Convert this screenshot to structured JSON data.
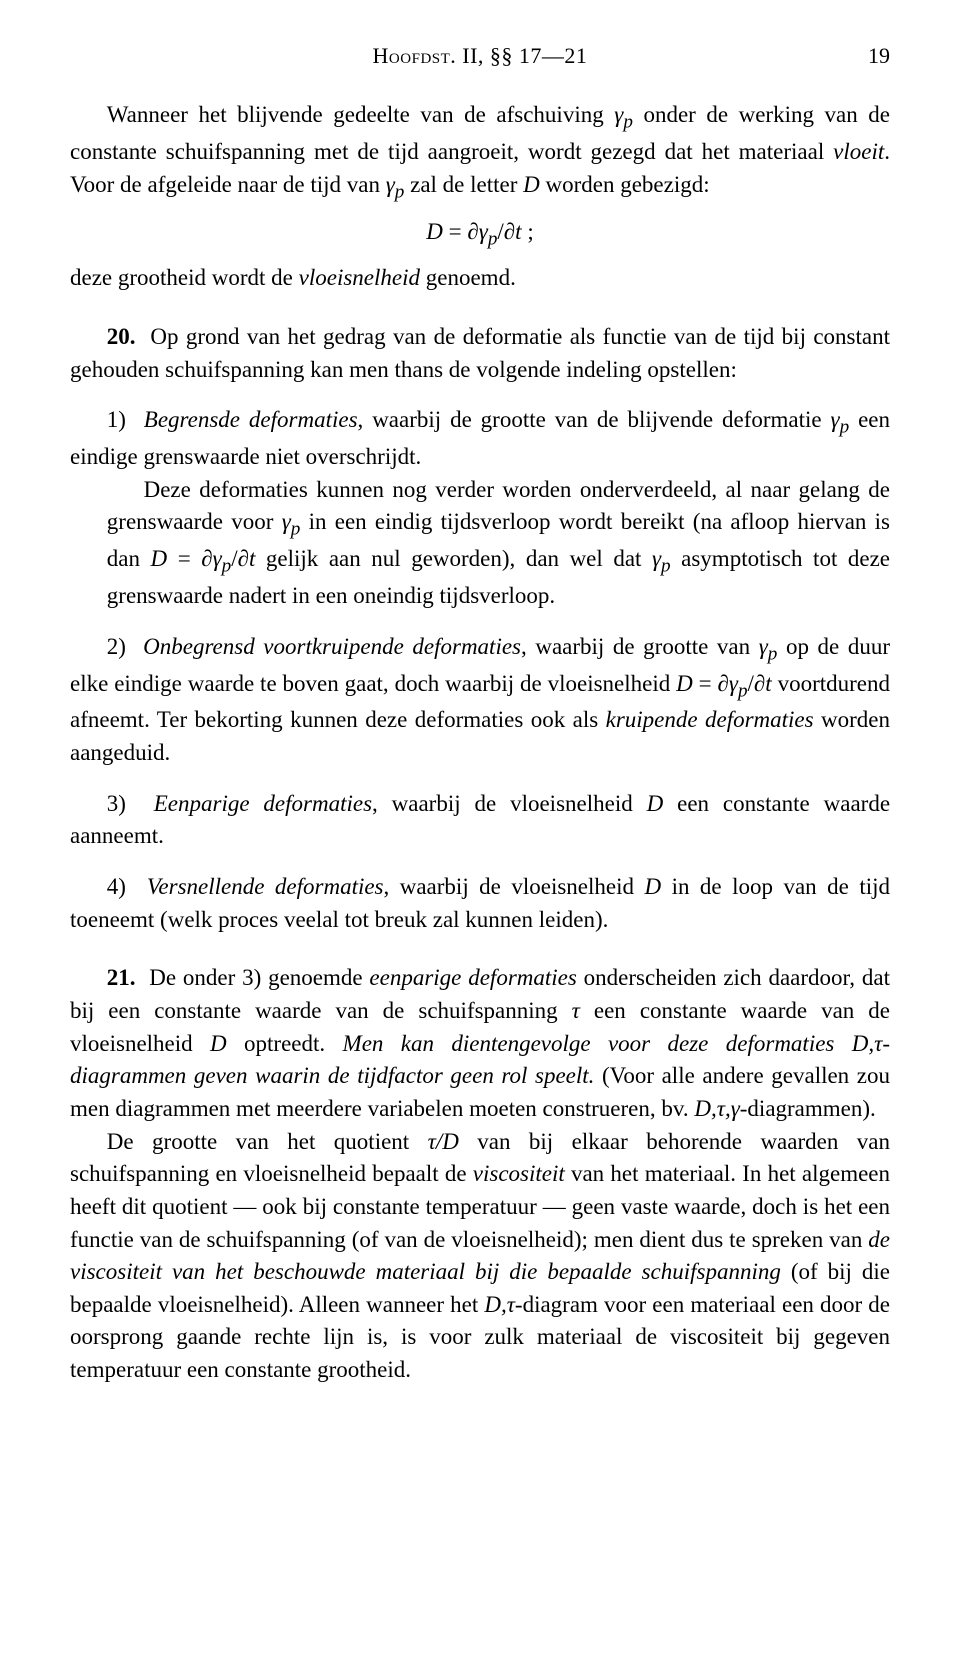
{
  "header": {
    "running_head": "Hoofdst. II, §§ 17—21",
    "page_number": "19"
  },
  "p1": "Wanneer het blijvende gedeelte van de afschuiving γₚ onder de werking van de constante schuifspanning met de tijd aangroeit, wordt gezegd dat het materiaal vloeit. Voor de afgeleide naar de tijd van γₚ zal de letter D worden gebezigd:",
  "eq1": "D = ∂γₚ/∂t ;",
  "p2": "deze grootheid wordt de vloeisnelheid genoemd.",
  "s20_num": "20.",
  "s20": "Op grond van het gedrag van de deformatie als functie van de tijd bij constant gehouden schuifspanning kan men thans de volgende indeling opstellen:",
  "li1_num": "1)",
  "li1_a": "Begrensde deformaties, waarbij de grootte van de blijvende deformatie γₚ een eindige grenswaarde niet overschrijdt.",
  "li1_b": "Deze deformaties kunnen nog verder worden onderverdeeld, al naar gelang de grenswaarde voor γₚ in een eindig tijdsverloop wordt bereikt (na afloop hiervan is dan D = ∂γₚ/∂t gelijk aan nul geworden), dan wel dat γₚ asymptotisch tot deze grenswaarde nadert in een oneindig tijdsverloop.",
  "li2_num": "2)",
  "li2": "Onbegrensd voortkruipende deformaties, waarbij de grootte van γₚ op de duur elke eindige waarde te boven gaat, doch waarbij de vloeisnelheid D = ∂γₚ/∂t voortdurend afneemt. Ter bekorting kunnen deze deformaties ook als kruipende deformaties worden aangeduid.",
  "li3_num": "3)",
  "li3": "Eenparige deformaties, waarbij de vloeisnelheid D een constante waarde aanneemt.",
  "li4_num": "4)",
  "li4": "Versnellende deformaties, waarbij de vloeisnelheid D in de loop van de tijd toeneemt (welk proces veelal tot breuk zal kunnen leiden).",
  "s21_num": "21.",
  "s21a": "De onder 3) genoemde eenparige deformaties onderscheiden zich daardoor, dat bij een constante waarde van de schuifspanning τ een constante waarde van de vloeisnelheid D optreedt. Men kan dientengevolge voor deze deformaties D,τ-diagrammen geven waarin de tijdfactor geen rol speelt. (Voor alle andere gevallen zou men diagrammen met meerdere variabelen moeten construeren, bv. D,τ,γ-diagrammen).",
  "s21b": "De grootte van het quotient τ/D van bij elkaar behorende waarden van schuifspanning en vloeisnelheid bepaalt de viscositeit van het materiaal. In het algemeen heeft dit quotient — ook bij constante temperatuur — geen vaste waarde, doch is het een functie van de schuifspanning (of van de vloeisnelheid); men dient dus te spreken van de viscositeit van het beschouwde materiaal bij die bepaalde schuifspanning (of bij die bepaalde vloeisnelheid). Alleen wanneer het D,τ-diagram voor een materiaal een door de oorsprong gaande rechte lijn is, is voor zulk materiaal de viscositeit bij gegeven temperatuur een constante grootheid."
}
